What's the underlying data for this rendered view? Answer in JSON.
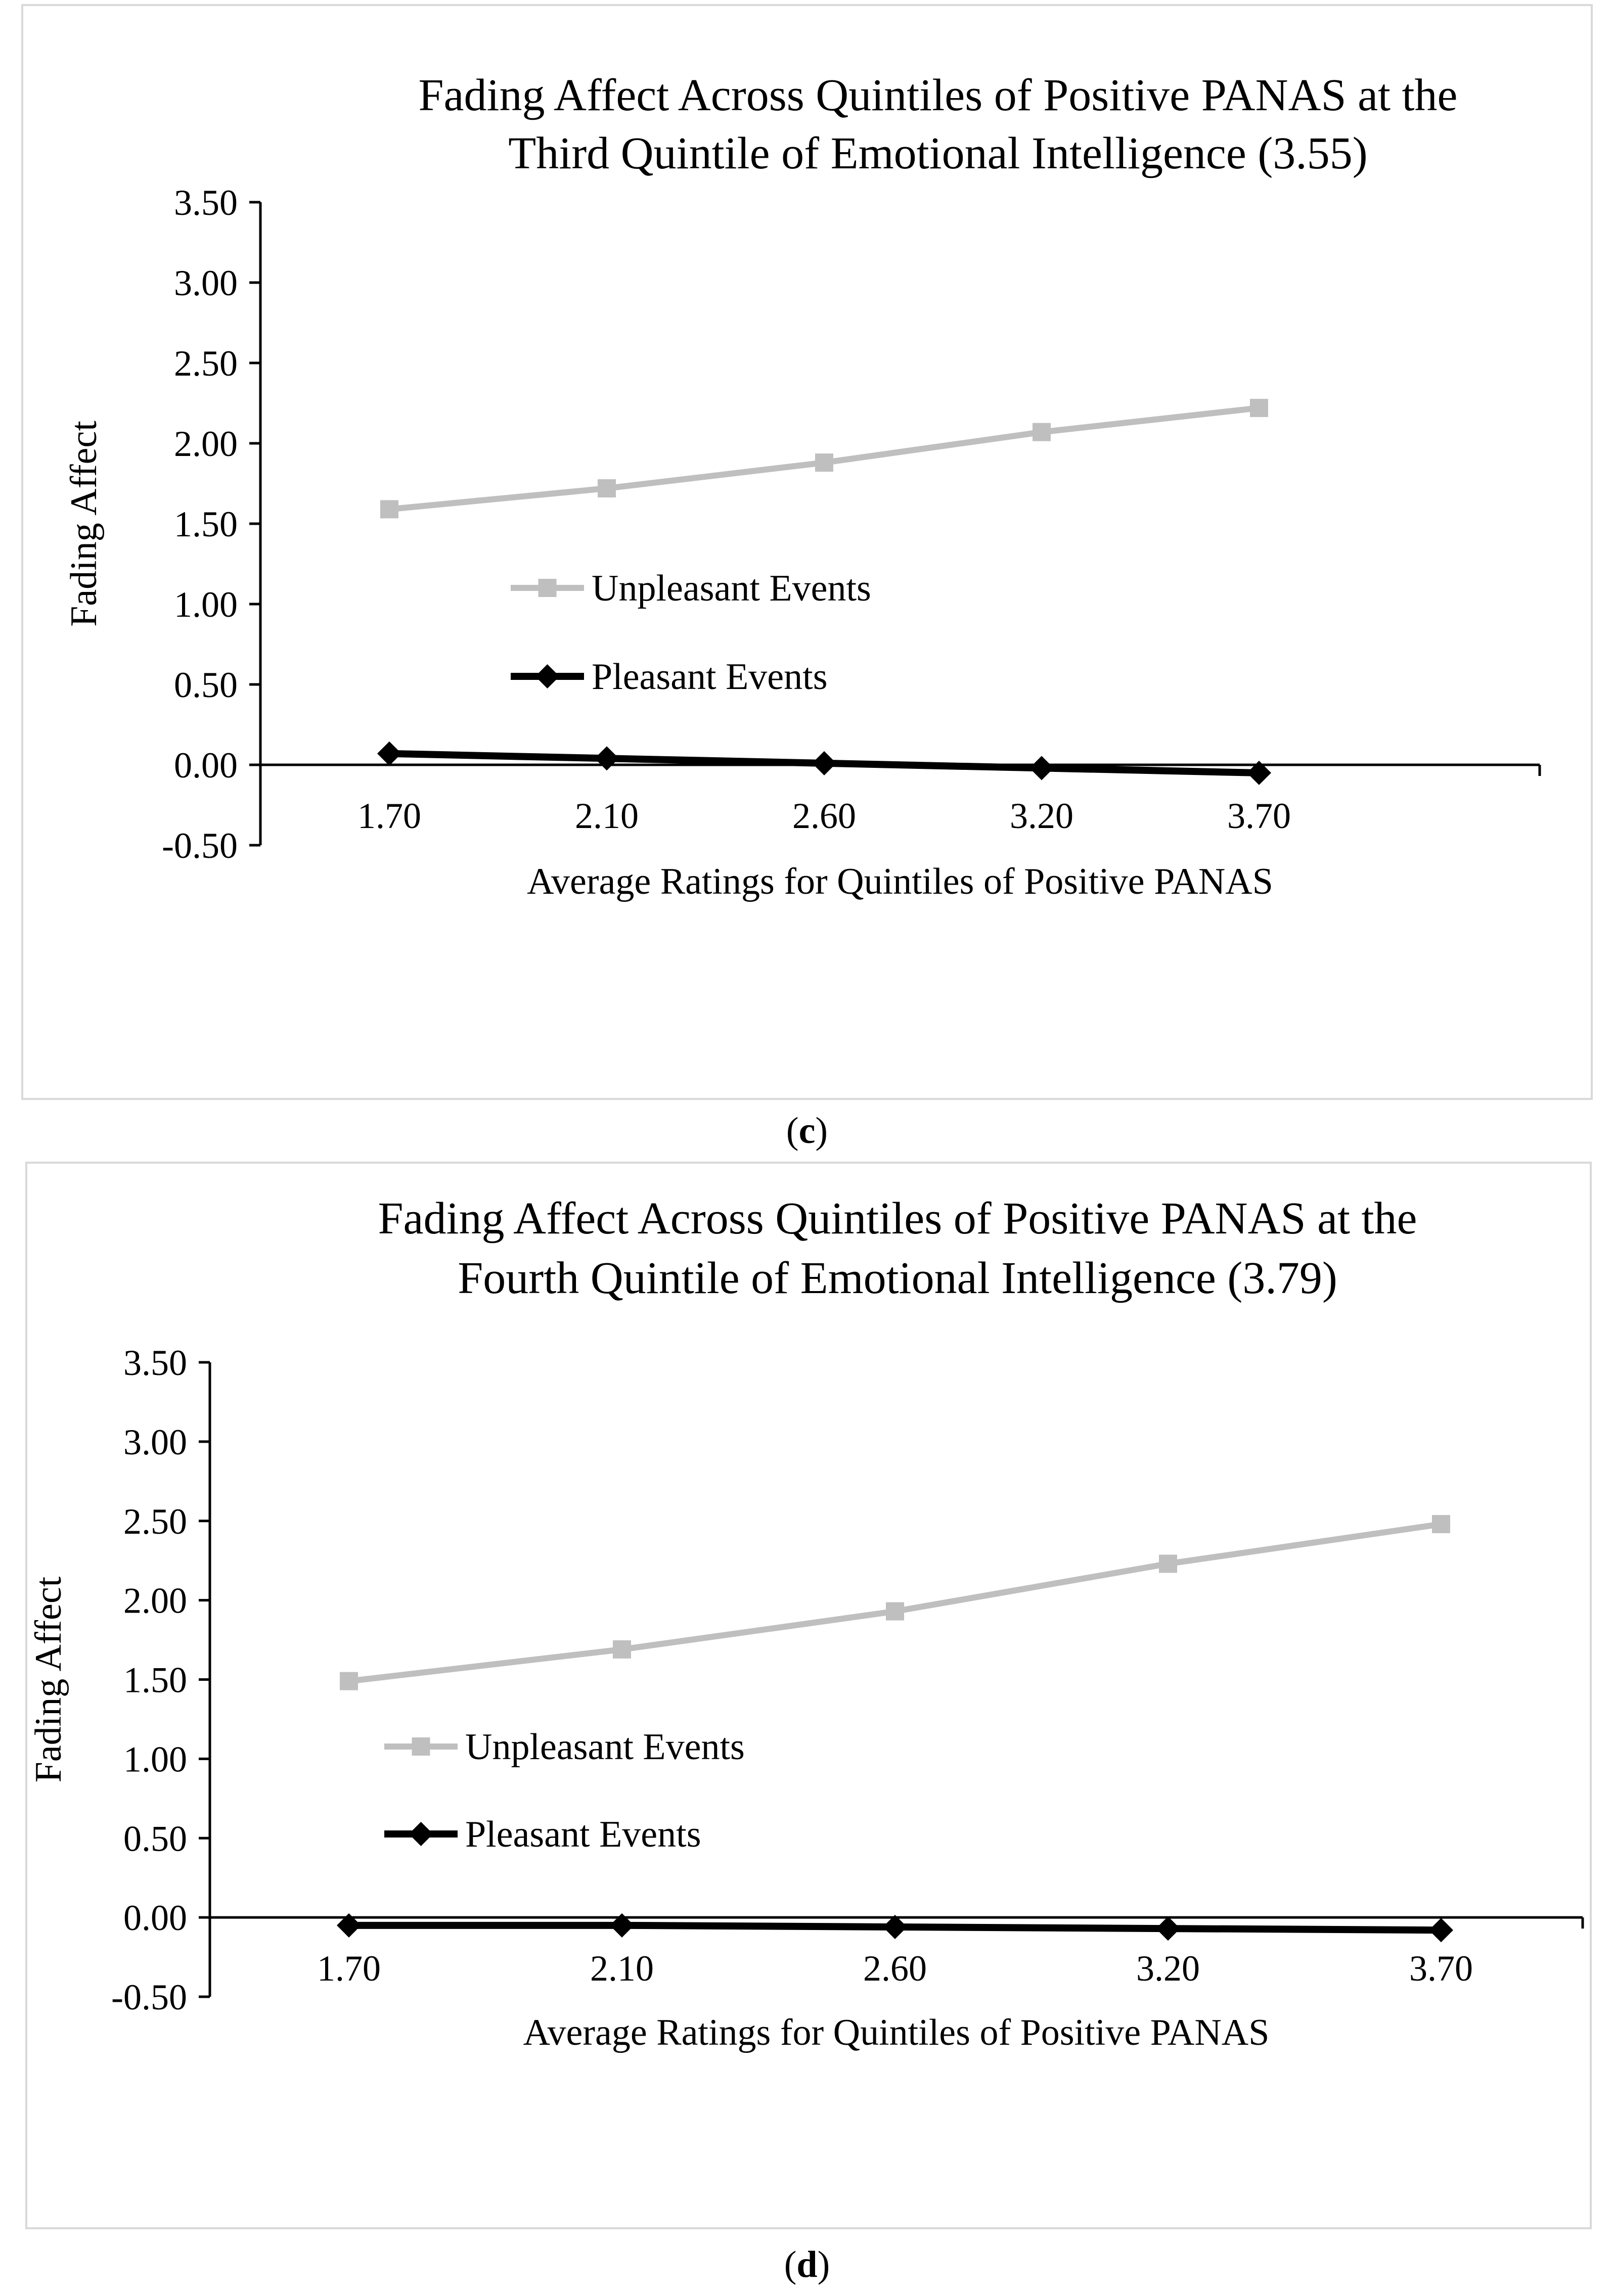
{
  "chart_data": [
    {
      "type": "line",
      "panel": "c",
      "title_lines": [
        "Fading Affect Across Quintiles of Positive PANAS at the",
        "Third Quintile of Emotional Intelligence (3.55)"
      ],
      "xlabel": "Average Ratings for Quintiles of Positive PANAS",
      "ylabel": "Fading Affect",
      "categories": [
        "1.70",
        "2.10",
        "2.60",
        "3.20",
        "3.70"
      ],
      "ylim": [
        -0.5,
        3.5
      ],
      "yticks": [
        "3.50",
        "3.00",
        "2.50",
        "2.00",
        "1.50",
        "1.00",
        "0.50",
        "0.00",
        "-0.50"
      ],
      "series": [
        {
          "name": "Unpleasant Events",
          "color": "#bfbfbf",
          "marker": "square",
          "values": [
            1.59,
            1.72,
            1.88,
            2.07,
            2.22
          ]
        },
        {
          "name": "Pleasant Events",
          "color": "#000000",
          "marker": "diamond",
          "values": [
            0.07,
            0.04,
            0.01,
            -0.02,
            -0.05
          ]
        }
      ],
      "legend": "center-left"
    },
    {
      "type": "line",
      "panel": "d",
      "title_lines": [
        "Fading Affect Across Quintiles of Positive PANAS at the",
        "Fourth Quintile of Emotional Intelligence (3.79)"
      ],
      "xlabel": "Average Ratings for Quintiles of Positive PANAS",
      "ylabel": "Fading Affect",
      "categories": [
        "1.70",
        "2.10",
        "2.60",
        "3.20",
        "3.70"
      ],
      "ylim": [
        -0.5,
        3.5
      ],
      "yticks": [
        "3.50",
        "3.00",
        "2.50",
        "2.00",
        "1.50",
        "1.00",
        "0.50",
        "0.00",
        "-0.50"
      ],
      "series": [
        {
          "name": "Unpleasant Events",
          "color": "#bfbfbf",
          "marker": "square",
          "values": [
            1.49,
            1.69,
            1.93,
            2.23,
            2.48
          ]
        },
        {
          "name": "Pleasant Events",
          "color": "#000000",
          "marker": "diamond",
          "values": [
            -0.05,
            -0.05,
            -0.06,
            -0.07,
            -0.08
          ]
        }
      ],
      "legend": "center-left"
    }
  ],
  "captions": [
    {
      "open": "(",
      "letter": "c",
      "close": ")"
    },
    {
      "open": "(",
      "letter": "d",
      "close": ")"
    }
  ]
}
